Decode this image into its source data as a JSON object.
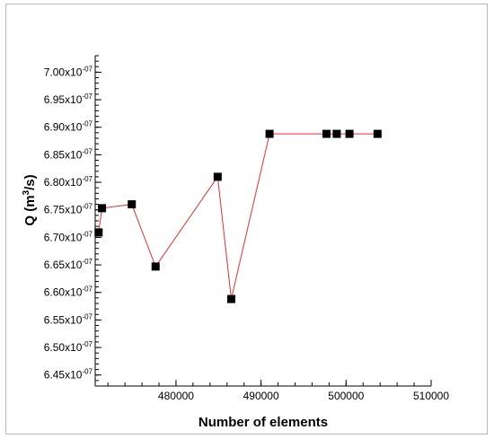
{
  "chart_data": {
    "type": "line",
    "title": "",
    "xlabel": "Number of elements",
    "ylabel_parts": {
      "main": "Q (m",
      "sup": "3",
      "tail": "/s)"
    },
    "xlim": [
      470500,
      510000
    ],
    "ylim": [
      6.43e-07,
      7.03e-07
    ],
    "x_ticks": [
      480000,
      490000,
      500000,
      510000
    ],
    "x_tick_labels": [
      "480000",
      "490000",
      "500000",
      "510000"
    ],
    "y_ticks": [
      6.45e-07,
      6.5e-07,
      6.55e-07,
      6.6e-07,
      6.65e-07,
      6.7e-07,
      6.75e-07,
      6.8e-07,
      6.85e-07,
      6.9e-07,
      6.95e-07,
      7e-07
    ],
    "y_tick_labels": [
      {
        "mant": "6.45x10",
        "exp": "-07"
      },
      {
        "mant": "6.50x10",
        "exp": "-07"
      },
      {
        "mant": "6.55x10",
        "exp": "-07"
      },
      {
        "mant": "6.60x10",
        "exp": "-07"
      },
      {
        "mant": "6.65x10",
        "exp": "-07"
      },
      {
        "mant": "6.70x10",
        "exp": "-07"
      },
      {
        "mant": "6.75x10",
        "exp": "-07"
      },
      {
        "mant": "6.80x10",
        "exp": "-07"
      },
      {
        "mant": "6.85x10",
        "exp": "-07"
      },
      {
        "mant": "6.90x10",
        "exp": "-07"
      },
      {
        "mant": "6.95x10",
        "exp": "-07"
      },
      {
        "mant": "7.00x10",
        "exp": "-07"
      }
    ],
    "series": [
      {
        "x": [
          470900,
          471300,
          474800,
          477600,
          484900,
          486500,
          491000,
          497700,
          498900,
          500400,
          503700
        ],
        "y": [
          6.709e-07,
          6.753e-07,
          6.76e-07,
          6.647e-07,
          6.81e-07,
          6.588e-07,
          6.888e-07,
          6.888e-07,
          6.888e-07,
          6.888e-07,
          6.888e-07
        ]
      }
    ],
    "line_color": "#e03030",
    "marker_color": "#000000",
    "marker": "square",
    "grid": false,
    "legend": "none"
  }
}
